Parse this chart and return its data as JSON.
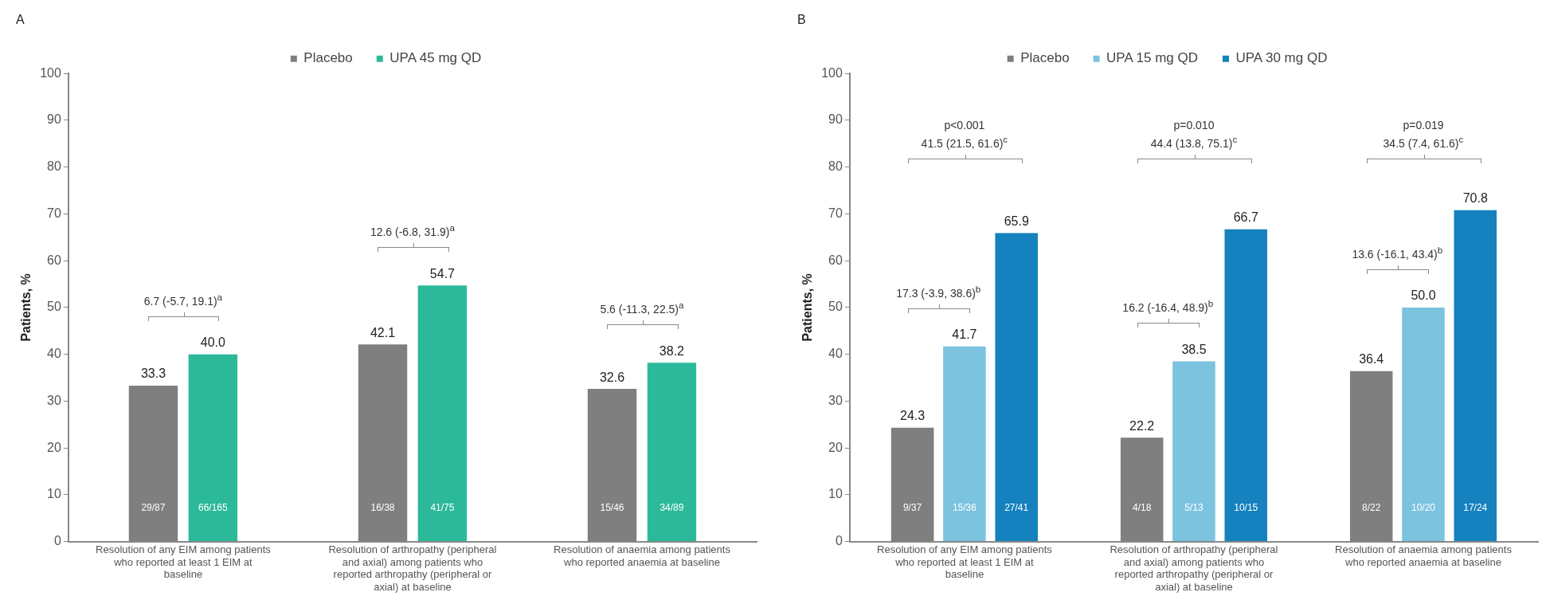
{
  "chart_data": [
    {
      "type": "bar",
      "title": "A",
      "ylabel": "Patients, %",
      "categories": [
        "Resolution of any EIM among patients who reported at least 1 EIM at baseline",
        "Resolution of arthropathy (peripheral and axial) among patients who reported arthropathy (peripheral or axial) at baseline",
        "Resolution of anaemia among patients who reported anaemia at baseline"
      ],
      "series": [
        {
          "name": "Placebo",
          "color": "#7f7f7f",
          "values": [
            33.3,
            42.1,
            32.6
          ],
          "value_labels": [
            "33.3",
            "42.1",
            "32.6"
          ]
        },
        {
          "name": "UPA 45 mg QD",
          "color": "#2bb99a",
          "values": [
            40.0,
            54.7,
            38.2
          ],
          "value_labels": [
            "40.0",
            "54.7",
            "38.2"
          ]
        }
      ],
      "ylim": [
        0,
        100
      ],
      "yticks": [
        0,
        10,
        20,
        30,
        40,
        50,
        60,
        70,
        80,
        90,
        100
      ],
      "grid": false,
      "legend": "top",
      "annotations": [
        "29/87",
        "66/165",
        "16/38",
        "41/75",
        "15/46",
        "34/89",
        "6.7 (-5.7, 19.1)$^{a}$",
        "12.6 (-6.8, 31.9)$^{a}$",
        "5.6 (-11.3, 22.5)$^{a}$"
      ]
    },
    {
      "type": "bar",
      "title": "B",
      "ylabel": "Patients, %",
      "categories": [
        "Resolution of any EIM among patients who reported at least 1 EIM at baseline",
        "Resolution of arthropathy (peripheral and axial) among patients who reported arthropathy (peripheral or axial) at baseline",
        "Resolution of anaemia among patients who reported anaemia at baseline"
      ],
      "series": [
        {
          "name": "Placebo",
          "color": "#7f7f7f",
          "values": [
            24.3,
            22.2,
            36.4
          ],
          "value_labels": [
            "24.3",
            "22.2",
            "36.4"
          ]
        },
        {
          "name": "UPA 15 mg QD",
          "color": "#7cc3e0",
          "values": [
            41.7,
            38.5,
            50.0
          ],
          "value_labels": [
            "41.7",
            "38.5",
            "50.0"
          ]
        },
        {
          "name": "UPA 30 mg QD",
          "color": "#1581bf",
          "values": [
            65.9,
            66.7,
            70.8
          ],
          "value_labels": [
            "65.9",
            "66.7",
            "70.8"
          ]
        }
      ],
      "ylim": [
        0,
        100
      ],
      "yticks": [
        0,
        10,
        20,
        30,
        40,
        50,
        60,
        70,
        80,
        90,
        100
      ],
      "grid": false,
      "legend": "top",
      "annotations": [
        "9/37",
        "15/36",
        "27/41",
        "4/18",
        "5/13",
        "10/15",
        "8/22",
        "10/20",
        "17/24",
        "17.3 (-3.9, 38.6)$^{b}$",
        "p<0.001\n41.5 (21.5, 61.6)$^{c}$",
        "16.2 (-16.4, 48.9)$^{b}$",
        "p=0.010\n44.4 (13.8, 75.1)$^{c}$",
        "13.6 (-16.1, 43.4)$^{b}$",
        "p=0.019\n34.5 (7.4, 61.6)$^{c}$"
      ]
    }
  ]
}
